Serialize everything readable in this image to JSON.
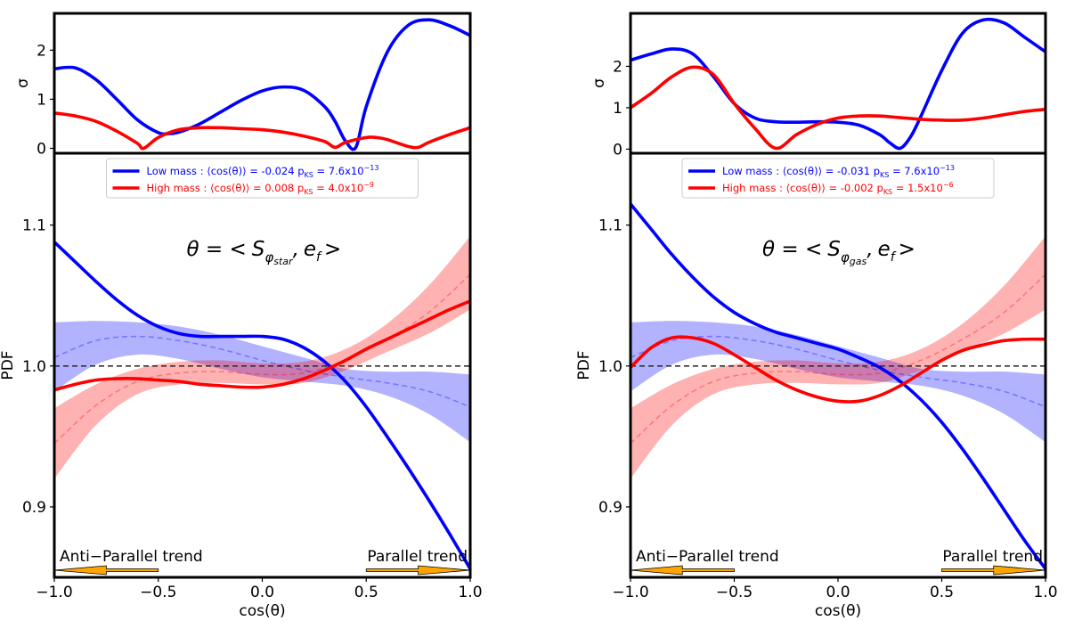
{
  "chart_data": [
    {
      "type": "line",
      "panel": "left",
      "formula": {
        "theta": "θ = <",
        "vec": "S",
        "sub": "φ",
        "subsub": "star",
        "mid": ",",
        "vec2": "e",
        "sub2": "f",
        "end": ">"
      },
      "xlabel": "cos(θ)",
      "xlim": [
        -1.0,
        1.0
      ],
      "xticks": [
        "−1.0",
        "−0.5",
        "0.0",
        "0.5",
        "1.0"
      ],
      "xtick_values": [
        -1.0,
        -0.5,
        0.0,
        0.5,
        1.0
      ],
      "main": {
        "ylabel": "PDF",
        "ylim": [
          0.85,
          1.151
        ],
        "yticks": [
          "0.9",
          "1.0",
          "1.1"
        ],
        "ytick_values": [
          0.9,
          1.0,
          1.1
        ],
        "reference_line": 1.0,
        "legend": [
          {
            "label": "Low mass :  ⟨cos(θ)⟩ = -0.024  p",
            "sub": "KS",
            "eq": " = 7.6x10",
            "exp": "−13",
            "color": "#0000ff"
          },
          {
            "label": "High mass : ⟨cos(θ)⟩ = 0.008  p",
            "sub": "KS",
            "eq": " = 4.0x10",
            "exp": "−9",
            "color": "#ff0000"
          }
        ],
        "series": [
          {
            "name": "Low mass",
            "color": "#0000ff",
            "x": [
              -1.0,
              -0.9,
              -0.8,
              -0.7,
              -0.6,
              -0.5,
              -0.4,
              -0.3,
              -0.2,
              -0.1,
              0.0,
              0.1,
              0.2,
              0.3,
              0.4,
              0.5,
              0.6,
              0.7,
              0.8,
              0.9,
              1.0
            ],
            "y": [
              1.088,
              1.074,
              1.06,
              1.047,
              1.036,
              1.028,
              1.023,
              1.021,
              1.021,
              1.021,
              1.021,
              1.019,
              1.013,
              1.003,
              0.989,
              0.971,
              0.95,
              0.928,
              0.905,
              0.881,
              0.856
            ]
          },
          {
            "name": "High mass",
            "color": "#ff0000",
            "x": [
              -1.0,
              -0.9,
              -0.8,
              -0.7,
              -0.6,
              -0.5,
              -0.4,
              -0.3,
              -0.2,
              -0.1,
              0.0,
              0.1,
              0.2,
              0.3,
              0.4,
              0.5,
              0.6,
              0.7,
              0.8,
              0.9,
              1.0
            ],
            "y": [
              0.983,
              0.987,
              0.99,
              0.991,
              0.991,
              0.99,
              0.989,
              0.987,
              0.986,
              0.985,
              0.985,
              0.987,
              0.991,
              0.997,
              1.004,
              1.012,
              1.019,
              1.026,
              1.033,
              1.04,
              1.046
            ]
          }
        ],
        "bands": [
          {
            "name": "Random low mass",
            "color": "#0000ff",
            "x": [
              -1.0,
              -0.8,
              -0.6,
              -0.4,
              -0.2,
              0.0,
              0.2,
              0.4,
              0.6,
              0.8,
              1.0
            ],
            "mid": [
              1.006,
              1.018,
              1.021,
              1.018,
              1.012,
              1.004,
              0.997,
              0.992,
              0.988,
              0.982,
              0.971
            ],
            "lo": [
              0.982,
              1.001,
              1.008,
              1.005,
              0.998,
              0.992,
              0.989,
              0.986,
              0.979,
              0.966,
              0.946
            ],
            "hi": [
              1.031,
              1.032,
              1.031,
              1.028,
              1.022,
              1.014,
              1.006,
              0.998,
              0.996,
              0.996,
              0.994
            ]
          },
          {
            "name": "Random high mass",
            "color": "#ff0000",
            "x": [
              -1.0,
              -0.8,
              -0.6,
              -0.4,
              -0.2,
              0.0,
              0.2,
              0.4,
              0.6,
              0.8,
              1.0
            ],
            "mid": [
              0.945,
              0.972,
              0.989,
              0.995,
              0.996,
              0.994,
              0.995,
              1.004,
              1.019,
              1.038,
              1.065
            ],
            "lo": [
              0.92,
              0.958,
              0.98,
              0.987,
              0.988,
              0.987,
              0.988,
              0.997,
              1.01,
              1.023,
              1.04
            ],
            "hi": [
              0.97,
              0.987,
              0.998,
              1.003,
              1.004,
              1.002,
              1.003,
              1.012,
              1.03,
              1.057,
              1.092
            ]
          }
        ],
        "annotations": [
          {
            "text": "Anti−Parallel trend",
            "arrow_from": -0.5,
            "arrow_to": -1.0
          },
          {
            "text": "Parallel trend",
            "arrow_from": 0.5,
            "arrow_to": 1.0
          }
        ],
        "arrow_color": "#ffa500"
      },
      "sigma": {
        "ylabel": "σ",
        "ylim": [
          -0.1,
          2.75
        ],
        "yticks": [
          "0",
          "1",
          "2"
        ],
        "ytick_values": [
          0,
          1,
          2
        ],
        "series": [
          {
            "name": "Low mass",
            "color": "#0000ff",
            "x": [
              -1.0,
              -0.9,
              -0.8,
              -0.7,
              -0.6,
              -0.5,
              -0.45,
              -0.4,
              -0.3,
              -0.2,
              -0.1,
              0.0,
              0.1,
              0.2,
              0.3,
              0.35,
              0.4,
              0.45,
              0.5,
              0.6,
              0.7,
              0.8,
              0.9,
              1.0
            ],
            "y": [
              1.62,
              1.64,
              1.4,
              1.0,
              0.58,
              0.32,
              0.3,
              0.33,
              0.5,
              0.74,
              0.98,
              1.17,
              1.25,
              1.18,
              0.85,
              0.55,
              0.15,
              0.02,
              0.85,
              1.95,
              2.5,
              2.62,
              2.5,
              2.3
            ]
          },
          {
            "name": "High mass",
            "color": "#ff0000",
            "x": [
              -1.0,
              -0.9,
              -0.8,
              -0.7,
              -0.6,
              -0.57,
              -0.5,
              -0.4,
              -0.3,
              -0.2,
              -0.1,
              0.0,
              0.1,
              0.2,
              0.3,
              0.35,
              0.4,
              0.5,
              0.55,
              0.6,
              0.7,
              0.75,
              0.8,
              0.9,
              1.0
            ],
            "y": [
              0.72,
              0.66,
              0.55,
              0.35,
              0.1,
              0.0,
              0.22,
              0.38,
              0.42,
              0.42,
              0.4,
              0.38,
              0.33,
              0.25,
              0.14,
              0.02,
              0.12,
              0.22,
              0.22,
              0.18,
              0.04,
              0.02,
              0.12,
              0.28,
              0.42
            ]
          }
        ]
      }
    },
    {
      "type": "line",
      "panel": "right",
      "formula": {
        "theta": "θ = <",
        "vec": "S",
        "sub": "φ",
        "subsub": "gas",
        "mid": ",",
        "vec2": "e",
        "sub2": "f",
        "end": ">"
      },
      "xlabel": "cos(θ)",
      "xlim": [
        -1.0,
        1.0
      ],
      "xticks": [
        "−1.0",
        "−0.5",
        "0.0",
        "0.5",
        "1.0"
      ],
      "xtick_values": [
        -1.0,
        -0.5,
        0.0,
        0.5,
        1.0
      ],
      "main": {
        "ylabel": "PDF",
        "ylim": [
          0.85,
          1.151
        ],
        "yticks": [
          "0.9",
          "1.0",
          "1.1"
        ],
        "ytick_values": [
          0.9,
          1.0,
          1.1
        ],
        "reference_line": 1.0,
        "legend": [
          {
            "label": "Low mass :  ⟨cos(θ)⟩ = -0.031  p",
            "sub": "KS",
            "eq": " = 7.6x10",
            "exp": "−13",
            "color": "#0000ff"
          },
          {
            "label": "High mass : ⟨cos(θ)⟩ = -0.002  p",
            "sub": "KS",
            "eq": " = 1.5x10",
            "exp": "−6",
            "color": "#ff0000"
          }
        ],
        "series": [
          {
            "name": "Low mass",
            "color": "#0000ff",
            "x": [
              -1.0,
              -0.9,
              -0.8,
              -0.7,
              -0.6,
              -0.5,
              -0.4,
              -0.3,
              -0.2,
              -0.1,
              0.0,
              0.1,
              0.2,
              0.3,
              0.4,
              0.5,
              0.6,
              0.7,
              0.8,
              0.9,
              1.0
            ],
            "y": [
              1.115,
              1.097,
              1.079,
              1.063,
              1.049,
              1.038,
              1.03,
              1.024,
              1.02,
              1.016,
              1.012,
              1.006,
              0.999,
              0.989,
              0.976,
              0.96,
              0.941,
              0.92,
              0.898,
              0.876,
              0.856
            ]
          },
          {
            "name": "High mass",
            "color": "#ff0000",
            "x": [
              -1.0,
              -0.9,
              -0.8,
              -0.7,
              -0.6,
              -0.5,
              -0.4,
              -0.3,
              -0.2,
              -0.1,
              0.0,
              0.1,
              0.2,
              0.3,
              0.4,
              0.5,
              0.6,
              0.7,
              0.8,
              0.9,
              1.0
            ],
            "y": [
              0.999,
              1.013,
              1.02,
              1.02,
              1.016,
              1.008,
              0.999,
              0.99,
              0.983,
              0.978,
              0.975,
              0.975,
              0.979,
              0.986,
              0.995,
              1.004,
              1.011,
              1.015,
              1.018,
              1.019,
              1.019
            ]
          }
        ],
        "bands": [
          {
            "name": "Random low mass",
            "color": "#0000ff",
            "x": [
              -1.0,
              -0.8,
              -0.6,
              -0.4,
              -0.2,
              0.0,
              0.2,
              0.4,
              0.6,
              0.8,
              1.0
            ],
            "mid": [
              1.006,
              1.018,
              1.021,
              1.018,
              1.012,
              1.004,
              0.997,
              0.992,
              0.988,
              0.982,
              0.971
            ],
            "lo": [
              0.982,
              1.001,
              1.008,
              1.005,
              0.998,
              0.992,
              0.989,
              0.986,
              0.979,
              0.966,
              0.946
            ],
            "hi": [
              1.031,
              1.032,
              1.031,
              1.028,
              1.022,
              1.014,
              1.006,
              0.998,
              0.996,
              0.996,
              0.994
            ]
          },
          {
            "name": "Random high mass",
            "color": "#ff0000",
            "x": [
              -1.0,
              -0.8,
              -0.6,
              -0.4,
              -0.2,
              0.0,
              0.2,
              0.4,
              0.6,
              0.8,
              1.0
            ],
            "mid": [
              0.945,
              0.972,
              0.989,
              0.995,
              0.996,
              0.994,
              0.995,
              1.004,
              1.019,
              1.038,
              1.065
            ],
            "lo": [
              0.92,
              0.958,
              0.98,
              0.987,
              0.988,
              0.987,
              0.988,
              0.997,
              1.01,
              1.023,
              1.04
            ],
            "hi": [
              0.97,
              0.987,
              0.998,
              1.003,
              1.004,
              1.002,
              1.003,
              1.012,
              1.03,
              1.057,
              1.092
            ]
          }
        ],
        "annotations": [
          {
            "text": "Anti−Parallel trend",
            "arrow_from": -0.5,
            "arrow_to": -1.0
          },
          {
            "text": "Parallel trend",
            "arrow_from": 0.5,
            "arrow_to": 1.0
          }
        ],
        "arrow_color": "#ffa500"
      },
      "sigma": {
        "ylabel": "σ",
        "ylim": [
          -0.1,
          3.28
        ],
        "yticks": [
          "0",
          "1",
          "2"
        ],
        "ytick_values": [
          0,
          1,
          2
        ],
        "series": [
          {
            "name": "Low mass",
            "color": "#0000ff",
            "x": [
              -1.0,
              -0.9,
              -0.8,
              -0.7,
              -0.6,
              -0.5,
              -0.4,
              -0.3,
              -0.2,
              -0.1,
              0.0,
              0.1,
              0.2,
              0.25,
              0.3,
              0.35,
              0.4,
              0.5,
              0.6,
              0.7,
              0.8,
              0.9,
              1.0
            ],
            "y": [
              2.15,
              2.3,
              2.42,
              2.3,
              1.75,
              1.1,
              0.75,
              0.66,
              0.65,
              0.66,
              0.65,
              0.58,
              0.35,
              0.15,
              0.02,
              0.3,
              0.8,
              1.9,
              2.8,
              3.12,
              3.05,
              2.7,
              2.35
            ]
          },
          {
            "name": "High mass",
            "color": "#ff0000",
            "x": [
              -1.0,
              -0.9,
              -0.8,
              -0.7,
              -0.6,
              -0.5,
              -0.4,
              -0.3,
              -0.2,
              -0.1,
              0.0,
              0.1,
              0.2,
              0.3,
              0.4,
              0.5,
              0.6,
              0.7,
              0.8,
              0.9,
              1.0
            ],
            "y": [
              1.0,
              1.35,
              1.75,
              1.98,
              1.8,
              1.1,
              0.5,
              0.02,
              0.35,
              0.6,
              0.75,
              0.8,
              0.8,
              0.76,
              0.72,
              0.7,
              0.7,
              0.75,
              0.83,
              0.91,
              0.96
            ]
          }
        ]
      }
    }
  ]
}
